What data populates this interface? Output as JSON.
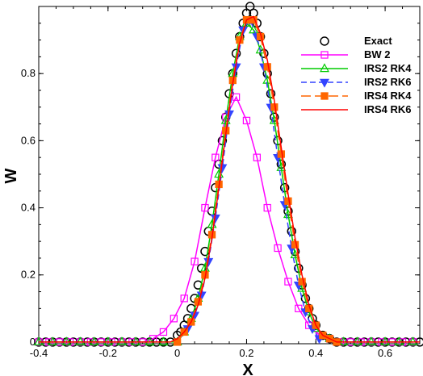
{
  "chart_data": {
    "type": "line",
    "xlabel": "X",
    "ylabel": "W",
    "xlim": [
      -0.4,
      0.7
    ],
    "ylim": [
      -0.005,
      1.0
    ],
    "xticks": [
      -0.4,
      -0.2,
      0,
      0.2,
      0.4,
      0.6
    ],
    "xtick_labels": [
      "-0.4",
      "-0.2",
      "0",
      "0.2",
      "0.4",
      "0.6"
    ],
    "yticks": [
      0,
      0.2,
      0.4,
      0.6,
      0.8
    ],
    "ytick_labels": [
      "0",
      "0.2",
      "0.4",
      "0.6",
      "0.8"
    ],
    "grid": false,
    "legend_position": "top-right",
    "series": [
      {
        "name": "Exact",
        "color": "#000000",
        "line": "none",
        "marker": "circle",
        "marker_fill": "none",
        "x": [
          -0.4,
          -0.38,
          -0.36,
          -0.34,
          -0.32,
          -0.3,
          -0.28,
          -0.26,
          -0.24,
          -0.22,
          -0.2,
          -0.18,
          -0.16,
          -0.14,
          -0.12,
          -0.1,
          -0.08,
          -0.06,
          -0.04,
          -0.02,
          0.0,
          0.01,
          0.02,
          0.03,
          0.04,
          0.05,
          0.06,
          0.07,
          0.08,
          0.09,
          0.1,
          0.11,
          0.12,
          0.13,
          0.14,
          0.15,
          0.16,
          0.17,
          0.18,
          0.19,
          0.2,
          0.21,
          0.22,
          0.23,
          0.24,
          0.25,
          0.26,
          0.27,
          0.28,
          0.29,
          0.3,
          0.31,
          0.32,
          0.33,
          0.34,
          0.35,
          0.36,
          0.37,
          0.38,
          0.39,
          0.4,
          0.42,
          0.44,
          0.46,
          0.48,
          0.5,
          0.52,
          0.54,
          0.56,
          0.58,
          0.6,
          0.62,
          0.64,
          0.66,
          0.68,
          0.7
        ],
        "y": [
          0,
          0,
          0,
          0,
          0,
          0,
          0,
          0,
          0,
          0,
          0,
          0,
          0,
          0,
          0,
          0,
          0,
          0,
          0,
          0,
          0.02,
          0.03,
          0.05,
          0.07,
          0.1,
          0.13,
          0.17,
          0.22,
          0.27,
          0.33,
          0.39,
          0.46,
          0.53,
          0.6,
          0.67,
          0.74,
          0.8,
          0.86,
          0.91,
          0.95,
          0.98,
          1.0,
          0.98,
          0.95,
          0.91,
          0.86,
          0.8,
          0.74,
          0.67,
          0.6,
          0.53,
          0.46,
          0.39,
          0.33,
          0.27,
          0.22,
          0.17,
          0.13,
          0.1,
          0.07,
          0.05,
          0.02,
          0.01,
          0.0,
          0,
          0,
          0,
          0,
          0,
          0,
          0,
          0,
          0,
          0,
          0,
          0
        ]
      },
      {
        "name": "BW 2",
        "color": "#ff00ff",
        "line": "solid",
        "marker": "square",
        "marker_fill": "none",
        "x": [
          -0.4,
          -0.37,
          -0.34,
          -0.31,
          -0.28,
          -0.25,
          -0.22,
          -0.19,
          -0.16,
          -0.13,
          -0.1,
          -0.07,
          -0.04,
          -0.01,
          0.02,
          0.05,
          0.08,
          0.11,
          0.14,
          0.17,
          0.2,
          0.23,
          0.26,
          0.29,
          0.32,
          0.35,
          0.38,
          0.41,
          0.44,
          0.47,
          0.5,
          0.53,
          0.56,
          0.59,
          0.62,
          0.65,
          0.68
        ],
        "y": [
          0,
          0,
          0,
          0,
          0,
          0,
          0,
          0,
          0,
          0,
          0.0,
          0.01,
          0.03,
          0.07,
          0.13,
          0.24,
          0.4,
          0.55,
          0.67,
          0.73,
          0.66,
          0.55,
          0.4,
          0.28,
          0.18,
          0.1,
          0.05,
          0.02,
          0.01,
          0.0,
          0,
          0,
          0,
          0,
          0,
          0,
          0
        ]
      },
      {
        "name": "IRS2 RK4",
        "color": "#00cc00",
        "line": "solid",
        "marker": "triangle-up",
        "marker_fill": "none",
        "x": [
          -0.4,
          -0.36,
          -0.32,
          -0.28,
          -0.24,
          -0.2,
          -0.16,
          -0.12,
          -0.08,
          -0.04,
          0.0,
          0.02,
          0.04,
          0.06,
          0.08,
          0.1,
          0.12,
          0.14,
          0.16,
          0.18,
          0.2,
          0.22,
          0.24,
          0.26,
          0.28,
          0.3,
          0.32,
          0.34,
          0.36,
          0.38,
          0.4,
          0.44,
          0.48,
          0.52,
          0.56,
          0.6,
          0.64,
          0.68
        ],
        "y": [
          0,
          0,
          0,
          0,
          0,
          0,
          0,
          0,
          0,
          0,
          0.0,
          0.03,
          0.07,
          0.13,
          0.22,
          0.35,
          0.5,
          0.66,
          0.8,
          0.91,
          0.95,
          0.93,
          0.87,
          0.78,
          0.66,
          0.52,
          0.38,
          0.26,
          0.16,
          0.09,
          0.04,
          0.01,
          0.0,
          0,
          0,
          0,
          0,
          0
        ]
      },
      {
        "name": "IRS2 RK6",
        "color": "#3344ff",
        "line": "dashed",
        "marker": "triangle-down",
        "marker_fill": "filled",
        "x": [
          0.03,
          0.05,
          0.07,
          0.09,
          0.11,
          0.13,
          0.15,
          0.17,
          0.19,
          0.21,
          0.23,
          0.25,
          0.27,
          0.29,
          0.31,
          0.33,
          0.35,
          0.37,
          0.39,
          0.41
        ],
        "y": [
          0.04,
          0.08,
          0.14,
          0.24,
          0.37,
          0.52,
          0.68,
          0.82,
          0.93,
          0.96,
          0.91,
          0.82,
          0.7,
          0.55,
          0.41,
          0.28,
          0.17,
          0.09,
          0.04,
          0.01
        ]
      },
      {
        "name": "IRS4 RK4",
        "color": "#ff6600",
        "line": "long-dash",
        "marker": "square",
        "marker_fill": "filled",
        "x": [
          0.0,
          0.02,
          0.04,
          0.06,
          0.08,
          0.1,
          0.12,
          0.14,
          0.16,
          0.18,
          0.2,
          0.22,
          0.24,
          0.26,
          0.28,
          0.3,
          0.32,
          0.34,
          0.36,
          0.38,
          0.4,
          0.42,
          0.44,
          0.46
        ],
        "y": [
          0.0,
          0.03,
          0.06,
          0.12,
          0.2,
          0.32,
          0.47,
          0.63,
          0.78,
          0.9,
          0.96,
          0.96,
          0.91,
          0.82,
          0.7,
          0.56,
          0.42,
          0.29,
          0.18,
          0.1,
          0.05,
          0.02,
          0.01,
          0.0
        ]
      },
      {
        "name": "IRS4 RK6",
        "color": "#ff0000",
        "line": "solid",
        "marker": "none",
        "marker_fill": "none",
        "x": [
          -0.4,
          -0.3,
          -0.2,
          -0.1,
          -0.02,
          0.0,
          0.02,
          0.04,
          0.06,
          0.08,
          0.1,
          0.12,
          0.14,
          0.16,
          0.18,
          0.2,
          0.22,
          0.24,
          0.26,
          0.28,
          0.3,
          0.32,
          0.34,
          0.36,
          0.38,
          0.4,
          0.42,
          0.44,
          0.46,
          0.5,
          0.6,
          0.7
        ],
        "y": [
          0,
          0,
          0,
          0,
          0.0,
          0.01,
          0.03,
          0.06,
          0.11,
          0.19,
          0.31,
          0.46,
          0.62,
          0.77,
          0.89,
          0.96,
          0.97,
          0.92,
          0.84,
          0.72,
          0.58,
          0.44,
          0.31,
          0.2,
          0.11,
          0.05,
          0.02,
          0.01,
          0.0,
          0,
          0,
          0
        ]
      }
    ]
  }
}
